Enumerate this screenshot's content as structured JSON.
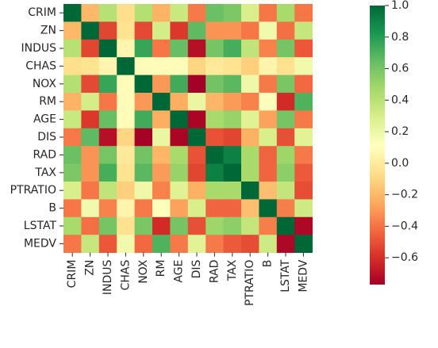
{
  "chart_data": {
    "type": "heatmap",
    "labels": [
      "CRIM",
      "ZN",
      "INDUS",
      "CHAS",
      "NOX",
      "RM",
      "AGE",
      "DIS",
      "RAD",
      "TAX",
      "PTRATIO",
      "B",
      "LSTAT",
      "MEDV"
    ],
    "matrix": [
      [
        1.0,
        -0.2,
        0.41,
        -0.06,
        0.42,
        -0.22,
        0.35,
        -0.38,
        0.63,
        0.58,
        0.29,
        -0.39,
        0.46,
        -0.39
      ],
      [
        -0.2,
        1.0,
        -0.53,
        -0.04,
        -0.52,
        0.31,
        -0.57,
        0.66,
        -0.31,
        -0.31,
        -0.39,
        0.18,
        -0.41,
        0.36
      ],
      [
        0.41,
        -0.53,
        1.0,
        0.06,
        0.76,
        -0.39,
        0.64,
        -0.71,
        0.6,
        0.72,
        0.38,
        -0.36,
        0.6,
        -0.48
      ],
      [
        -0.06,
        -0.04,
        0.06,
        1.0,
        0.09,
        0.09,
        0.09,
        -0.1,
        -0.01,
        -0.04,
        -0.12,
        0.05,
        -0.05,
        0.18
      ],
      [
        0.42,
        -0.52,
        0.76,
        0.09,
        1.0,
        -0.3,
        0.73,
        -0.77,
        0.61,
        0.67,
        0.19,
        -0.38,
        0.59,
        -0.43
      ],
      [
        -0.22,
        0.31,
        -0.39,
        0.09,
        -0.3,
        1.0,
        -0.24,
        0.21,
        -0.21,
        -0.29,
        -0.36,
        0.13,
        -0.61,
        0.7
      ],
      [
        0.35,
        -0.57,
        0.64,
        0.09,
        0.73,
        -0.24,
        1.0,
        -0.75,
        0.46,
        0.51,
        0.26,
        -0.27,
        0.6,
        -0.38
      ],
      [
        -0.38,
        0.66,
        -0.71,
        -0.1,
        -0.77,
        0.21,
        -0.75,
        1.0,
        -0.49,
        -0.53,
        -0.23,
        0.29,
        -0.5,
        0.25
      ],
      [
        0.63,
        -0.31,
        0.6,
        -0.01,
        0.61,
        -0.21,
        0.46,
        -0.49,
        1.0,
        0.91,
        0.46,
        -0.44,
        0.49,
        -0.38
      ],
      [
        0.58,
        -0.31,
        0.72,
        -0.04,
        0.67,
        -0.29,
        0.51,
        -0.53,
        0.91,
        1.0,
        0.46,
        -0.44,
        0.54,
        -0.47
      ],
      [
        0.29,
        -0.39,
        0.38,
        -0.12,
        0.19,
        -0.36,
        0.26,
        -0.23,
        0.46,
        0.46,
        1.0,
        -0.18,
        0.37,
        -0.51
      ],
      [
        -0.39,
        0.18,
        -0.36,
        0.05,
        -0.38,
        0.13,
        -0.27,
        0.29,
        -0.44,
        -0.44,
        -0.18,
        1.0,
        -0.37,
        0.33
      ],
      [
        0.46,
        -0.41,
        0.6,
        -0.05,
        0.59,
        -0.61,
        0.6,
        -0.5,
        0.49,
        0.54,
        0.37,
        -0.37,
        1.0,
        -0.74
      ],
      [
        -0.39,
        0.36,
        -0.48,
        0.18,
        -0.43,
        0.7,
        -0.38,
        0.25,
        -0.38,
        -0.47,
        -0.51,
        0.33,
        -0.74,
        1.0
      ]
    ],
    "colormap": "RdYlGn",
    "colorbar": {
      "vmin": -0.77,
      "vmax": 1.0,
      "ticks": [
        1.0,
        0.8,
        0.6,
        0.4,
        0.2,
        0.0,
        -0.2,
        -0.4,
        -0.6
      ],
      "tick_labels": [
        "1.0",
        "0.8",
        "0.6",
        "0.4",
        "0.2",
        "0.0",
        "−0.2",
        "−0.4",
        "−0.6"
      ]
    },
    "title": "",
    "xlabel": "",
    "ylabel": ""
  }
}
